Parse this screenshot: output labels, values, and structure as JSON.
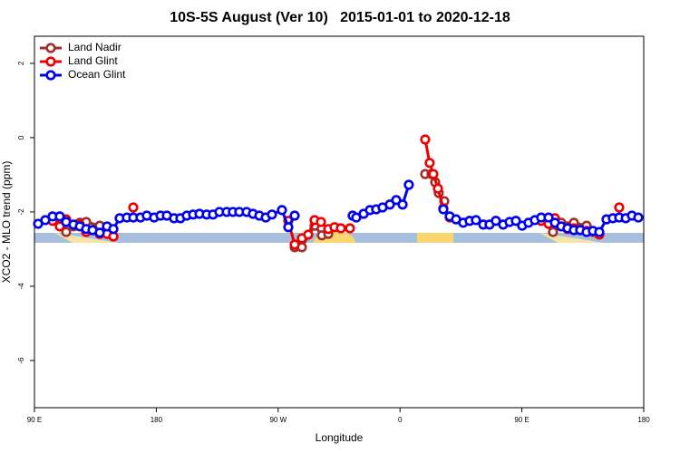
{
  "chart_data": {
    "type": "line",
    "title": "10S-5S August (Ver 10)   2015-01-01 to 2020-12-18",
    "x_label": "Longitude",
    "y_label": "XCO2 - MLO trend (ppm)",
    "xlim": [
      90,
      540
    ],
    "ylim": [
      -7.27,
      2.73
    ],
    "xticks": [
      {
        "value": 90,
        "label": "90 E"
      },
      180,
      {
        "value": 270,
        "label": "90 W"
      },
      {
        "value": 360,
        "label": "0"
      },
      {
        "value": 450,
        "label": "90 E"
      },
      {
        "value": 540,
        "label": "180"
      }
    ],
    "yticks": [
      -6,
      -4,
      -2,
      0,
      2
    ],
    "legend": "top-left",
    "series": [
      {
        "name": "Land Nadir",
        "color": "#a0302c",
        "x": [
          108.7,
          113.4,
          118.8,
          123.5,
          128.2,
          138.2,
          148.3,
          null,
          282.2,
          287.5,
          296.9,
          302.3,
          307.0,
          null,
          378.6,
          383.3,
          386.0,
          388.6,
          392.7,
          null,
          464.3,
          473.0,
          479.1,
          488.4,
          497.8,
          502.5,
          507.2
        ],
        "values": [
          -2.32,
          -2.54,
          -2.39,
          -2.29,
          -2.27,
          -2.37,
          -2.66,
          null,
          -2.95,
          -2.95,
          -2.37,
          -2.63,
          -2.59,
          null,
          -0.98,
          -0.98,
          -1.2,
          -1.49,
          -1.71,
          null,
          -2.22,
          -2.54,
          -2.29,
          -2.29,
          -2.37,
          -2.54,
          -2.59
        ]
      },
      {
        "name": "Land Glint",
        "color": "#ee0000",
        "x": [
          103.4,
          108.7,
          113.4,
          123.5,
          128.2,
          138.2,
          143.6,
          148.3,
          null,
          163.0,
          null,
          277.5,
          282.2,
          287.5,
          292.2,
          296.9,
          301.6,
          307.0,
          311.6,
          316.3,
          323.0,
          null,
          378.6,
          381.9,
          384.6,
          388.0,
          392.0,
          396.7,
          null,
          464.3,
          469.7,
          474.4,
          479.1,
          483.7,
          488.4,
          497.8,
          507.2,
          null,
          521.9
        ],
        "values": [
          -2.24,
          -2.39,
          -2.2,
          -2.34,
          -2.54,
          -2.59,
          -2.59,
          -2.66,
          null,
          -1.88,
          null,
          -2.24,
          -2.88,
          -2.71,
          -2.61,
          -2.22,
          -2.27,
          -2.46,
          -2.41,
          -2.44,
          -2.44,
          null,
          -0.05,
          -0.68,
          -0.98,
          -1.37,
          -1.9,
          -2.15,
          null,
          -2.24,
          -2.32,
          -2.17,
          -2.39,
          -2.46,
          -2.44,
          -2.51,
          -2.61,
          null,
          -1.88
        ]
      },
      {
        "name": "Ocean Glint",
        "color": "#0000ee",
        "x": [
          92.7,
          98.0,
          103.4,
          108.7,
          113.4,
          118.8,
          123.5,
          128.2,
          132.9,
          138.2,
          143.6,
          148.3,
          152.9,
          158.3,
          163.0,
          168.3,
          173.0,
          178.4,
          183.1,
          187.8,
          193.1,
          197.8,
          202.5,
          207.2,
          211.9,
          217.2,
          221.9,
          226.6,
          232.0,
          236.6,
          241.3,
          246.7,
          251.4,
          256.1,
          260.8,
          265.4,
          272.8,
          277.5,
          282.2,
          null,
          325.0,
          327.7,
          333.1,
          337.8,
          342.4,
          347.1,
          352.5,
          357.2,
          361.9,
          366.5,
          null,
          392.0,
          396.7,
          401.4,
          406.7,
          411.4,
          416.1,
          421.5,
          426.1,
          430.8,
          436.2,
          440.9,
          445.6,
          450.2,
          454.9,
          459.6,
          464.3,
          469.7,
          474.4,
          479.1,
          483.7,
          488.4,
          493.1,
          497.8,
          502.5,
          507.2,
          512.5,
          517.2,
          521.9,
          526.7,
          531.3,
          536.0
        ],
        "values": [
          -2.32,
          -2.22,
          -2.12,
          -2.12,
          -2.27,
          -2.34,
          -2.39,
          -2.46,
          -2.49,
          -2.56,
          -2.39,
          -2.46,
          -2.17,
          -2.15,
          -2.15,
          -2.15,
          -2.1,
          -2.15,
          -2.1,
          -2.1,
          -2.17,
          -2.17,
          -2.1,
          -2.07,
          -2.05,
          -2.07,
          -2.07,
          -2.0,
          -2.0,
          -2.0,
          -2.0,
          -2.0,
          -2.05,
          -2.1,
          -2.15,
          -2.07,
          -1.95,
          -2.41,
          -2.1,
          null,
          -2.1,
          -2.15,
          -2.05,
          -1.95,
          -1.93,
          -1.88,
          -1.8,
          -1.68,
          -1.8,
          -1.27,
          null,
          -1.93,
          -2.12,
          -2.2,
          -2.29,
          -2.24,
          -2.22,
          -2.34,
          -2.34,
          -2.24,
          -2.34,
          -2.27,
          -2.24,
          -2.37,
          -2.29,
          -2.22,
          -2.15,
          -2.15,
          -2.29,
          -2.39,
          -2.44,
          -2.49,
          -2.49,
          -2.54,
          -2.51,
          -2.54,
          -2.2,
          -2.17,
          -2.15,
          -2.17,
          -2.1,
          -2.15
        ]
      }
    ]
  }
}
